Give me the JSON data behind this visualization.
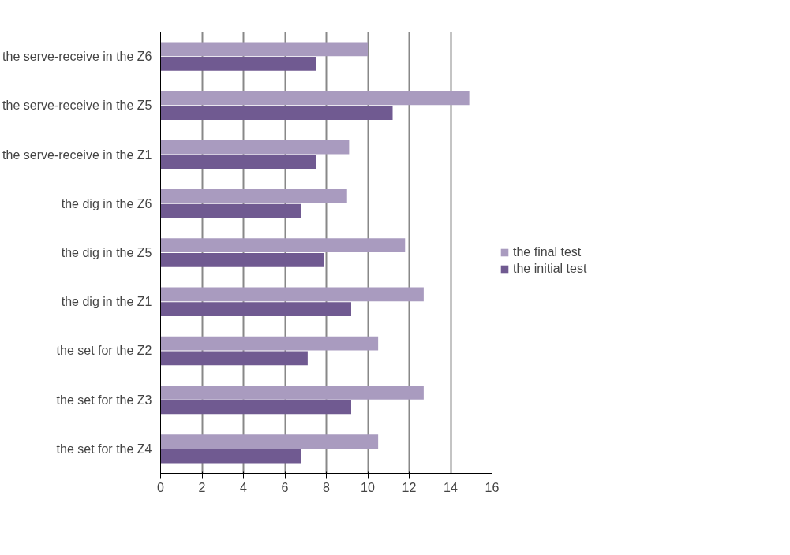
{
  "chart_data": {
    "type": "bar",
    "orientation": "horizontal",
    "categories": [
      "the serve-receive in the Z6",
      "the serve-receive in the Z5",
      "the serve-receive in the Z1",
      "the dig in the Z6",
      "the dig in the Z5",
      "the dig in the Z1",
      "the set for the Z2",
      "the set for the Z3",
      "the set for the Z4"
    ],
    "series": [
      {
        "name": "the final test",
        "color": "#a99bbf",
        "values": [
          10,
          14.9,
          9.1,
          9,
          11.8,
          12.7,
          10.5,
          12.7,
          10.5
        ]
      },
      {
        "name": "the initial test",
        "color": "#705a91",
        "values": [
          7.5,
          11.2,
          7.5,
          6.8,
          7.9,
          9.2,
          7.1,
          9.2,
          6.8
        ]
      }
    ],
    "xlim": [
      0,
      16
    ],
    "xticks": [
      0,
      2,
      4,
      6,
      8,
      10,
      12,
      14,
      16
    ],
    "grid": "x",
    "legend": "right"
  }
}
